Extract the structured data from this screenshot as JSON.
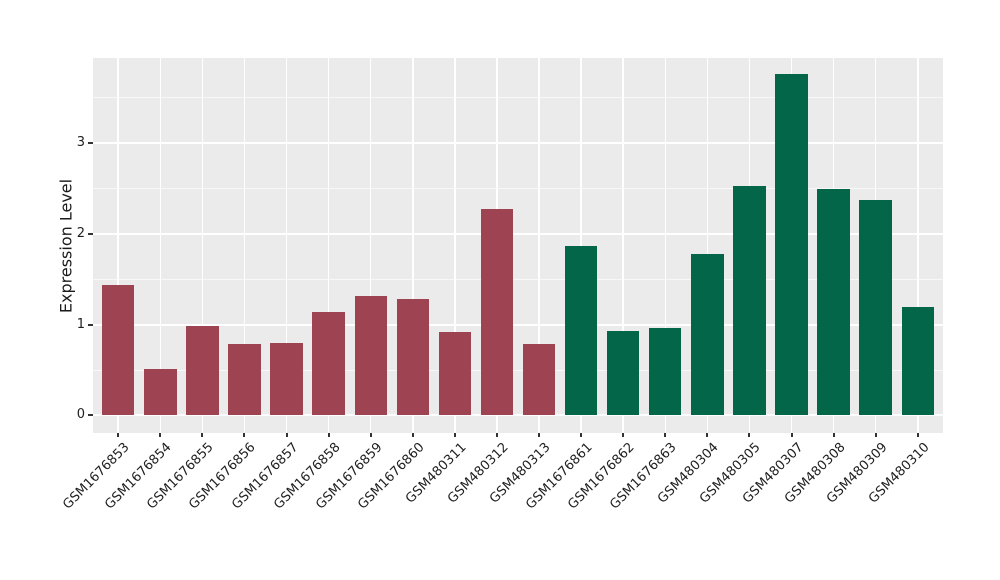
{
  "chart_data": {
    "type": "bar",
    "title": "",
    "xlabel": "",
    "ylabel": "Expression Level",
    "categories": [
      "GSM1676853",
      "GSM1676854",
      "GSM1676855",
      "GSM1676856",
      "GSM1676857",
      "GSM1676858",
      "GSM1676859",
      "GSM1676860",
      "GSM480311",
      "GSM480312",
      "GSM480313",
      "GSM1676861",
      "GSM1676862",
      "GSM1676863",
      "GSM480304",
      "GSM480305",
      "GSM480307",
      "GSM480308",
      "GSM480309",
      "GSM480310"
    ],
    "values": [
      1.44,
      0.51,
      0.98,
      0.79,
      0.8,
      1.14,
      1.32,
      1.28,
      0.92,
      2.27,
      0.79,
      1.87,
      0.93,
      0.96,
      1.78,
      2.53,
      3.76,
      2.49,
      2.37,
      1.2
    ],
    "groups": [
      "group1",
      "group1",
      "group1",
      "group1",
      "group1",
      "group1",
      "group1",
      "group1",
      "group1",
      "group1",
      "group1",
      "group2",
      "group2",
      "group2",
      "group2",
      "group2",
      "group2",
      "group2",
      "group2",
      "group2"
    ],
    "group_colors": {
      "group1": "#9d4351",
      "group2": "#036648"
    },
    "yticks": [
      0,
      1,
      2,
      3
    ],
    "ytick_labels": [
      "0",
      "1",
      "2",
      "3"
    ],
    "minor_yticks": [
      0.5,
      1.5,
      2.5,
      3.5
    ],
    "ylim": [
      -0.193,
      3.937
    ],
    "grid": "on",
    "legend_position": "none",
    "panel_background": "#ebebeb",
    "gridline_color": "#ffffff",
    "bar_width_fraction": 0.77,
    "outer_padding_slots": 0.6,
    "x_label_rotation_deg": 45
  }
}
